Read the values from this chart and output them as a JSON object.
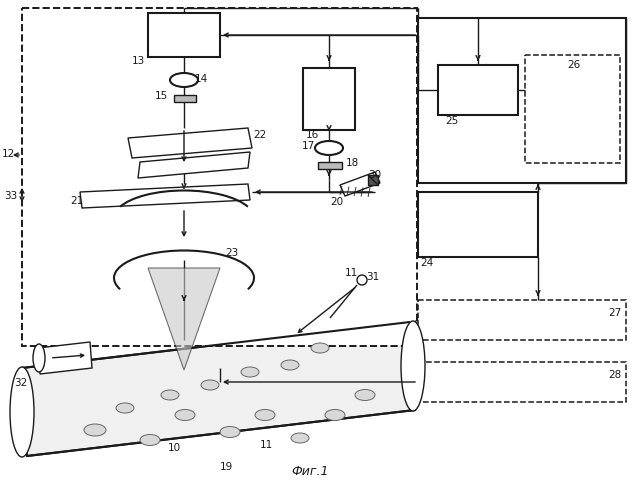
{
  "title": "Фиг.1",
  "bg_color": "#ffffff",
  "fig_width": 6.4,
  "fig_height": 4.84,
  "dpi": 100,
  "lc": "#1a1a1a"
}
